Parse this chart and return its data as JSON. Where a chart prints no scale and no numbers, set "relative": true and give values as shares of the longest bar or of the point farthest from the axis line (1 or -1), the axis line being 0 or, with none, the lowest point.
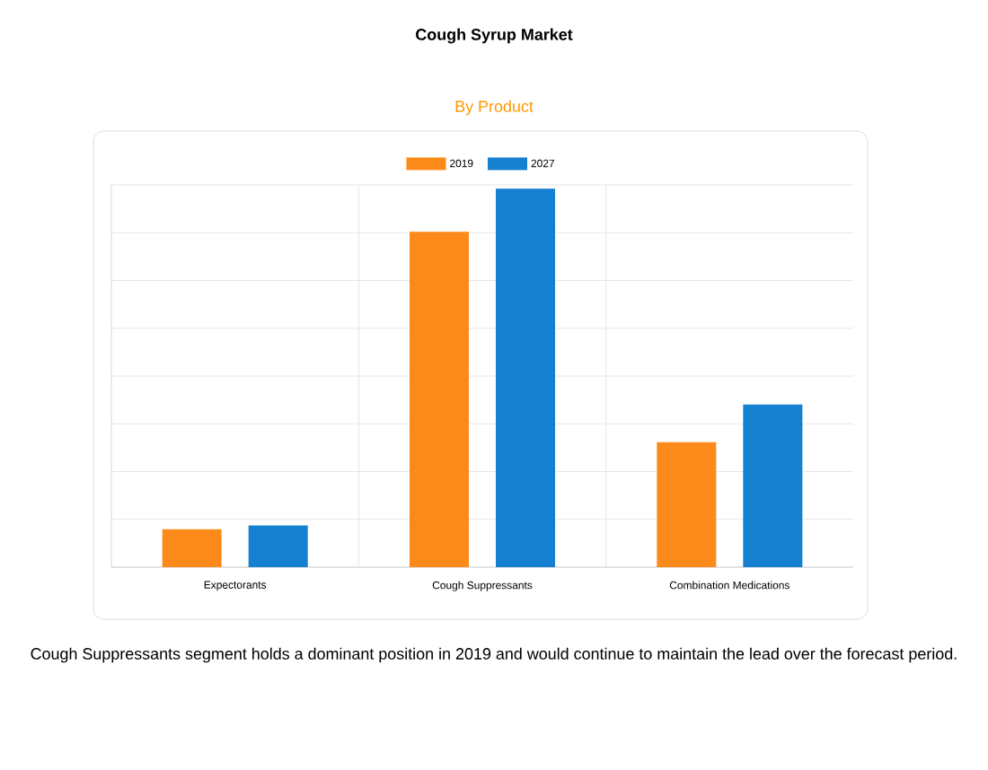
{
  "chart_data": {
    "type": "bar",
    "title": "Cough Syrup Market",
    "subtitle": "By Product",
    "categories": [
      "Expectorants",
      "Cough Suppressants",
      "Combination Medications"
    ],
    "series": [
      {
        "name": "2019",
        "color": "#fb8a1a",
        "values": [
          0.1,
          0.886,
          0.33
        ]
      },
      {
        "name": "2027",
        "color": "#1580cf",
        "values": [
          0.11,
          1.0,
          0.43
        ]
      }
    ],
    "relative": true,
    "grid": true,
    "legend": "top",
    "annotations": [
      "Cough Suppressants segment holds a dominant position in 2019 and would continue to maintain the lead over the forecast period."
    ]
  }
}
